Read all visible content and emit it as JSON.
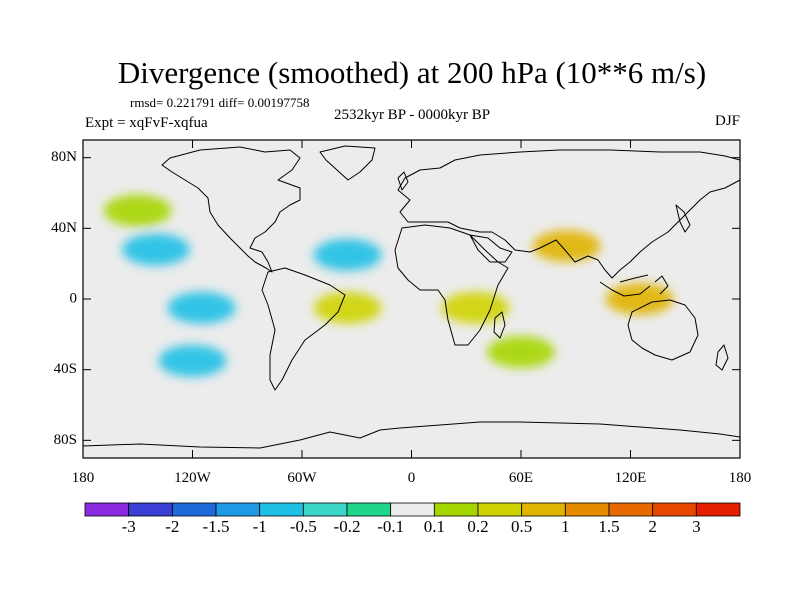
{
  "chart_data": {
    "type": "heatmap",
    "title": "Divergence (smoothed) at 200 hPa (10**6 m/s)",
    "stats": "rmsd= 0.221791 diff= 0.00197758",
    "experiment": "Expt = xqFvF-xqfua",
    "period": "2532kyr BP - 0000kyr BP",
    "season": "DJF",
    "x_axis": {
      "range": [
        -180,
        180
      ],
      "ticks": [
        -180,
        -120,
        -60,
        0,
        60,
        120,
        180
      ],
      "tick_labels": [
        "180",
        "120W",
        "60W",
        "0",
        "60E",
        "120E",
        "180"
      ]
    },
    "y_axis": {
      "range": [
        -90,
        90
      ],
      "ticks": [
        80,
        40,
        0,
        -40,
        -80
      ],
      "tick_labels": [
        "80N",
        "40N",
        "0",
        "40S",
        "80S"
      ]
    },
    "colorbar": {
      "colors": [
        "#8a2be2",
        "#3b3fd6",
        "#1e6ad8",
        "#1f9ae6",
        "#1ec0e6",
        "#3cd6c8",
        "#1ed68a",
        "#ececec",
        "#a6d600",
        "#cfd400",
        "#e0b400",
        "#e68a00",
        "#e66a00",
        "#e64600",
        "#e61e00"
      ],
      "labels": [
        "-3",
        "-2",
        "-1.5",
        "-1",
        "-0.5",
        "-0.2",
        "-0.1",
        "0.1",
        "0.2",
        "0.5",
        "1",
        "1.5",
        "2",
        "3"
      ]
    },
    "field_features": [
      {
        "name": "South Asia / Tibet high divergence",
        "lon": 85,
        "lat": 30,
        "value": 1.0
      },
      {
        "name": "Maritime continent divergence",
        "lon": 125,
        "lat": 0,
        "value": 1.0
      },
      {
        "name": "Equatorial South America / Atlantic divergence",
        "lon": -35,
        "lat": -5,
        "value": 0.5
      },
      {
        "name": "Equatorial Africa / Indian Ocean divergence",
        "lon": 35,
        "lat": -5,
        "value": 0.5
      },
      {
        "name": "North Pacific convergence band",
        "lon": -140,
        "lat": 28,
        "value": -0.5
      },
      {
        "name": "Eastern equatorial Pacific convergence",
        "lon": -115,
        "lat": -5,
        "value": -0.5
      },
      {
        "name": "North Atlantic convergence",
        "lon": -35,
        "lat": 25,
        "value": -0.5
      },
      {
        "name": "North Pacific divergence",
        "lon": -150,
        "lat": 50,
        "value": 0.2
      },
      {
        "name": "Southern Indian Ocean divergence",
        "lon": 60,
        "lat": -30,
        "value": 0.2
      },
      {
        "name": "South Pacific convergence",
        "lon": -120,
        "lat": -35,
        "value": -0.5
      }
    ]
  }
}
